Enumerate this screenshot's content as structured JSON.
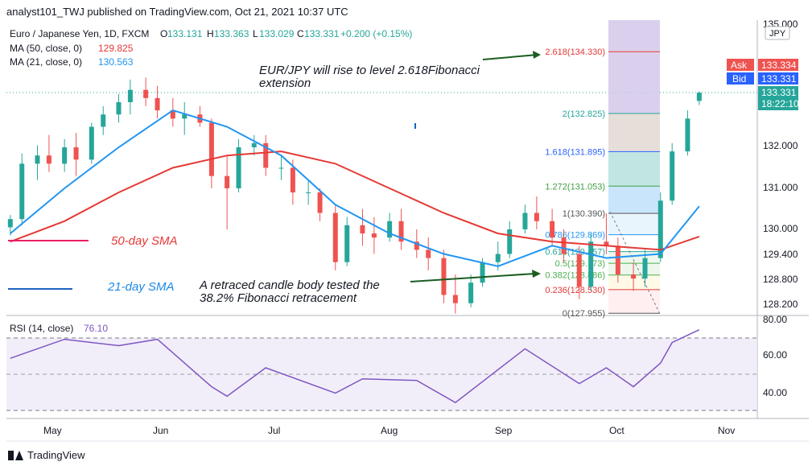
{
  "header": {
    "published_line": "analyst101_TWJ published on TradingView.com, Oct 21, 2021 10:37 UTC"
  },
  "legend": {
    "symbol": "Euro / Japanese Yen, 1D, FXCM",
    "o_label": "O",
    "o_value": "133.131",
    "h_label": "H",
    "h_value": "133.363",
    "l_label": "L",
    "l_value": "133.029",
    "c_label": "C",
    "c_value": "133.331",
    "change": "+0.200 (+0.15%)",
    "ma50_label": "MA (50, close, 0)",
    "ma50_value": "129.825",
    "ma21_label": "MA (21, close, 0)",
    "ma21_value": "130.563",
    "rsi_label": "RSI (14, close)",
    "rsi_value": "76.10"
  },
  "price_scale": {
    "currency": "JPY",
    "ticks": [
      "135.000",
      "132.000",
      "131.000",
      "130.000",
      "129.400",
      "128.800",
      "128.200"
    ],
    "ask_label": "Ask",
    "ask_value": "133.334",
    "bid_label": "Bid",
    "bid_value": "133.331",
    "last_value": "133.331",
    "countdown": "18:22:10"
  },
  "rsi_scale": {
    "ticks": [
      "80.00",
      "60.00",
      "40.00"
    ]
  },
  "time_axis": {
    "labels": [
      "May",
      "Jun",
      "Jul",
      "Aug",
      "Sep",
      "Oct",
      "Nov"
    ]
  },
  "annotations": {
    "rise_line1": "EUR/JPY will rise to level 2.618Fibonacci",
    "rise_line2": "extension",
    "retrace_line1": "A retraced candle body tested the",
    "retrace_line2": "38.2% Fibonacci retracement",
    "sma50_label": "50-day SMA",
    "sma21_label": "21-day SMA"
  },
  "fibonacci": [
    {
      "label": "2.618(134.330)",
      "price": 134.33,
      "color": "#e53935"
    },
    {
      "label": "2(132.825)",
      "price": 132.825,
      "color": "#26a69a"
    },
    {
      "label": "1.618(131.895)",
      "price": 131.895,
      "color": "#2962ff"
    },
    {
      "label": "1.272(131.053)",
      "price": 131.053,
      "color": "#43a047"
    },
    {
      "label": "1(130.390)",
      "price": 130.39,
      "color": "#555555"
    },
    {
      "label": "0.786(129.869)",
      "price": 129.869,
      "color": "#2196f3"
    },
    {
      "label": "0.618(129.457)",
      "price": 129.457,
      "color": "#26a69a"
    },
    {
      "label": "0.5(129.173)",
      "price": 129.173,
      "color": "#4caf50"
    },
    {
      "label": "0.382(128.886)",
      "price": 128.886,
      "color": "#4caf50"
    },
    {
      "label": "0.236(128.530)",
      "price": 128.53,
      "color": "#e53935"
    },
    {
      "label": "0(127.955)",
      "price": 127.955,
      "color": "#555555"
    }
  ],
  "colors": {
    "bull": "#26a69a",
    "bear": "#ef5350",
    "ma50": "#e53935",
    "ma21": "#2196f3",
    "rsi": "#7e57c2",
    "ask": "#ef5350",
    "bid": "#2962ff",
    "last": "#26a69a"
  },
  "chart_data": {
    "type": "candlestick",
    "title": "Euro / Japanese Yen, 1D, FXCM",
    "x_range": [
      "2021-04-25",
      "2021-11-05"
    ],
    "candles": [
      {
        "d": "2021-04-26",
        "o": 130.05,
        "h": 130.35,
        "l": 129.85,
        "c": 130.25
      },
      {
        "d": "2021-04-29",
        "o": 130.25,
        "h": 131.85,
        "l": 130.1,
        "c": 131.6
      },
      {
        "d": "2021-05-03",
        "o": 131.6,
        "h": 132.05,
        "l": 131.2,
        "c": 131.8
      },
      {
        "d": "2021-05-06",
        "o": 131.8,
        "h": 132.3,
        "l": 131.4,
        "c": 131.6
      },
      {
        "d": "2021-05-10",
        "o": 131.6,
        "h": 132.2,
        "l": 131.4,
        "c": 132.0
      },
      {
        "d": "2021-05-13",
        "o": 132.0,
        "h": 132.35,
        "l": 131.3,
        "c": 131.7
      },
      {
        "d": "2021-05-17",
        "o": 131.7,
        "h": 132.6,
        "l": 131.6,
        "c": 132.5
      },
      {
        "d": "2021-05-20",
        "o": 132.5,
        "h": 133.0,
        "l": 132.3,
        "c": 132.8
      },
      {
        "d": "2021-05-24",
        "o": 132.8,
        "h": 133.3,
        "l": 132.6,
        "c": 133.1
      },
      {
        "d": "2021-05-27",
        "o": 133.1,
        "h": 133.65,
        "l": 132.8,
        "c": 133.4
      },
      {
        "d": "2021-05-31",
        "o": 133.4,
        "h": 133.7,
        "l": 133.0,
        "c": 133.2
      },
      {
        "d": "2021-06-03",
        "o": 133.2,
        "h": 133.5,
        "l": 132.7,
        "c": 132.9
      },
      {
        "d": "2021-06-07",
        "o": 132.9,
        "h": 133.2,
        "l": 132.5,
        "c": 132.7
      },
      {
        "d": "2021-06-10",
        "o": 132.7,
        "h": 133.1,
        "l": 132.3,
        "c": 132.8
      },
      {
        "d": "2021-06-14",
        "o": 132.8,
        "h": 133.0,
        "l": 132.5,
        "c": 132.6
      },
      {
        "d": "2021-06-17",
        "o": 132.6,
        "h": 132.7,
        "l": 131.0,
        "c": 131.3
      },
      {
        "d": "2021-06-21",
        "o": 131.3,
        "h": 131.8,
        "l": 130.0,
        "c": 131.0
      },
      {
        "d": "2021-06-24",
        "o": 131.0,
        "h": 132.2,
        "l": 130.9,
        "c": 132.0
      },
      {
        "d": "2021-06-28",
        "o": 132.0,
        "h": 132.3,
        "l": 131.8,
        "c": 132.1
      },
      {
        "d": "2021-07-01",
        "o": 132.1,
        "h": 132.3,
        "l": 131.3,
        "c": 131.5
      },
      {
        "d": "2021-07-05",
        "o": 131.5,
        "h": 131.8,
        "l": 131.2,
        "c": 131.5
      },
      {
        "d": "2021-07-08",
        "o": 131.5,
        "h": 131.7,
        "l": 130.6,
        "c": 130.9
      },
      {
        "d": "2021-07-12",
        "o": 130.9,
        "h": 131.2,
        "l": 130.6,
        "c": 130.9
      },
      {
        "d": "2021-07-15",
        "o": 130.9,
        "h": 131.0,
        "l": 130.2,
        "c": 130.4
      },
      {
        "d": "2021-07-19",
        "o": 130.4,
        "h": 130.6,
        "l": 129.0,
        "c": 129.2
      },
      {
        "d": "2021-07-22",
        "o": 129.2,
        "h": 130.3,
        "l": 129.1,
        "c": 130.1
      },
      {
        "d": "2021-07-26",
        "o": 130.1,
        "h": 130.5,
        "l": 129.6,
        "c": 129.9
      },
      {
        "d": "2021-07-29",
        "o": 129.9,
        "h": 130.3,
        "l": 129.4,
        "c": 129.8
      },
      {
        "d": "2021-08-02",
        "o": 129.8,
        "h": 130.4,
        "l": 129.7,
        "c": 130.2
      },
      {
        "d": "2021-08-05",
        "o": 130.2,
        "h": 130.5,
        "l": 129.5,
        "c": 129.7
      },
      {
        "d": "2021-08-09",
        "o": 129.7,
        "h": 130.0,
        "l": 129.3,
        "c": 129.5
      },
      {
        "d": "2021-08-12",
        "o": 129.5,
        "h": 129.8,
        "l": 129.0,
        "c": 129.3
      },
      {
        "d": "2021-08-16",
        "o": 129.3,
        "h": 129.5,
        "l": 128.2,
        "c": 128.4
      },
      {
        "d": "2021-08-19",
        "o": 128.4,
        "h": 128.9,
        "l": 127.95,
        "c": 128.2
      },
      {
        "d": "2021-08-23",
        "o": 128.2,
        "h": 128.9,
        "l": 128.1,
        "c": 128.7
      },
      {
        "d": "2021-08-26",
        "o": 128.7,
        "h": 129.3,
        "l": 128.6,
        "c": 129.2
      },
      {
        "d": "2021-08-30",
        "o": 129.2,
        "h": 129.7,
        "l": 129.0,
        "c": 129.4
      },
      {
        "d": "2021-09-02",
        "o": 129.4,
        "h": 130.2,
        "l": 129.3,
        "c": 130.0
      },
      {
        "d": "2021-09-06",
        "o": 130.0,
        "h": 130.6,
        "l": 129.9,
        "c": 130.4
      },
      {
        "d": "2021-09-09",
        "o": 130.4,
        "h": 130.8,
        "l": 130.0,
        "c": 130.2
      },
      {
        "d": "2021-09-13",
        "o": 130.2,
        "h": 130.5,
        "l": 129.6,
        "c": 129.8
      },
      {
        "d": "2021-09-16",
        "o": 129.8,
        "h": 130.0,
        "l": 129.2,
        "c": 129.4
      },
      {
        "d": "2021-09-20",
        "o": 129.4,
        "h": 129.6,
        "l": 128.3,
        "c": 128.6
      },
      {
        "d": "2021-09-23",
        "o": 128.6,
        "h": 129.9,
        "l": 128.5,
        "c": 129.7
      },
      {
        "d": "2021-09-27",
        "o": 129.7,
        "h": 130.39,
        "l": 129.4,
        "c": 129.6
      },
      {
        "d": "2021-09-30",
        "o": 129.6,
        "h": 129.8,
        "l": 128.7,
        "c": 128.9
      },
      {
        "d": "2021-10-04",
        "o": 128.9,
        "h": 129.2,
        "l": 128.5,
        "c": 128.8
      },
      {
        "d": "2021-10-07",
        "o": 128.8,
        "h": 129.5,
        "l": 128.6,
        "c": 129.3
      },
      {
        "d": "2021-10-11",
        "o": 129.3,
        "h": 130.9,
        "l": 129.2,
        "c": 130.7
      },
      {
        "d": "2021-10-14",
        "o": 130.7,
        "h": 132.1,
        "l": 130.6,
        "c": 131.9
      },
      {
        "d": "2021-10-18",
        "o": 131.9,
        "h": 132.9,
        "l": 131.8,
        "c": 132.7
      },
      {
        "d": "2021-10-21",
        "o": 133.131,
        "h": 133.363,
        "l": 133.029,
        "c": 133.331
      }
    ],
    "series": [
      {
        "name": "MA (50, close, 0)",
        "values": [
          {
            "d": "2021-04-26",
            "v": 129.7
          },
          {
            "d": "2021-05-10",
            "v": 130.2
          },
          {
            "d": "2021-05-24",
            "v": 130.9
          },
          {
            "d": "2021-06-07",
            "v": 131.5
          },
          {
            "d": "2021-06-21",
            "v": 131.8
          },
          {
            "d": "2021-07-05",
            "v": 131.9
          },
          {
            "d": "2021-07-19",
            "v": 131.6
          },
          {
            "d": "2021-08-02",
            "v": 131.0
          },
          {
            "d": "2021-08-16",
            "v": 130.4
          },
          {
            "d": "2021-08-30",
            "v": 129.9
          },
          {
            "d": "2021-09-13",
            "v": 129.7
          },
          {
            "d": "2021-09-27",
            "v": 129.6
          },
          {
            "d": "2021-10-11",
            "v": 129.5
          },
          {
            "d": "2021-10-21",
            "v": 129.825
          }
        ]
      },
      {
        "name": "MA (21, close, 0)",
        "values": [
          {
            "d": "2021-04-26",
            "v": 129.9
          },
          {
            "d": "2021-05-10",
            "v": 131.0
          },
          {
            "d": "2021-05-24",
            "v": 132.0
          },
          {
            "d": "2021-06-07",
            "v": 132.9
          },
          {
            "d": "2021-06-21",
            "v": 132.5
          },
          {
            "d": "2021-07-05",
            "v": 131.8
          },
          {
            "d": "2021-07-19",
            "v": 130.6
          },
          {
            "d": "2021-08-02",
            "v": 129.9
          },
          {
            "d": "2021-08-16",
            "v": 129.4
          },
          {
            "d": "2021-08-30",
            "v": 129.1
          },
          {
            "d": "2021-09-13",
            "v": 129.6
          },
          {
            "d": "2021-09-27",
            "v": 129.3
          },
          {
            "d": "2021-10-11",
            "v": 129.4
          },
          {
            "d": "2021-10-21",
            "v": 130.563
          }
        ]
      },
      {
        "name": "RSI (14, close)",
        "values": [
          {
            "d": "2021-04-26",
            "v": 58
          },
          {
            "d": "2021-05-10",
            "v": 70
          },
          {
            "d": "2021-05-24",
            "v": 66
          },
          {
            "d": "2021-06-03",
            "v": 70
          },
          {
            "d": "2021-06-17",
            "v": 40
          },
          {
            "d": "2021-06-21",
            "v": 34
          },
          {
            "d": "2021-07-01",
            "v": 52
          },
          {
            "d": "2021-07-19",
            "v": 36
          },
          {
            "d": "2021-07-26",
            "v": 45
          },
          {
            "d": "2021-08-09",
            "v": 44
          },
          {
            "d": "2021-08-19",
            "v": 30
          },
          {
            "d": "2021-09-06",
            "v": 64
          },
          {
            "d": "2021-09-20",
            "v": 42
          },
          {
            "d": "2021-09-27",
            "v": 52
          },
          {
            "d": "2021-10-04",
            "v": 40
          },
          {
            "d": "2021-10-11",
            "v": 55
          },
          {
            "d": "2021-10-14",
            "v": 68
          },
          {
            "d": "2021-10-21",
            "v": 76.1
          }
        ]
      }
    ],
    "ylim": [
      127.9,
      135.1
    ],
    "rsi_ylim": [
      25,
      80
    ]
  }
}
